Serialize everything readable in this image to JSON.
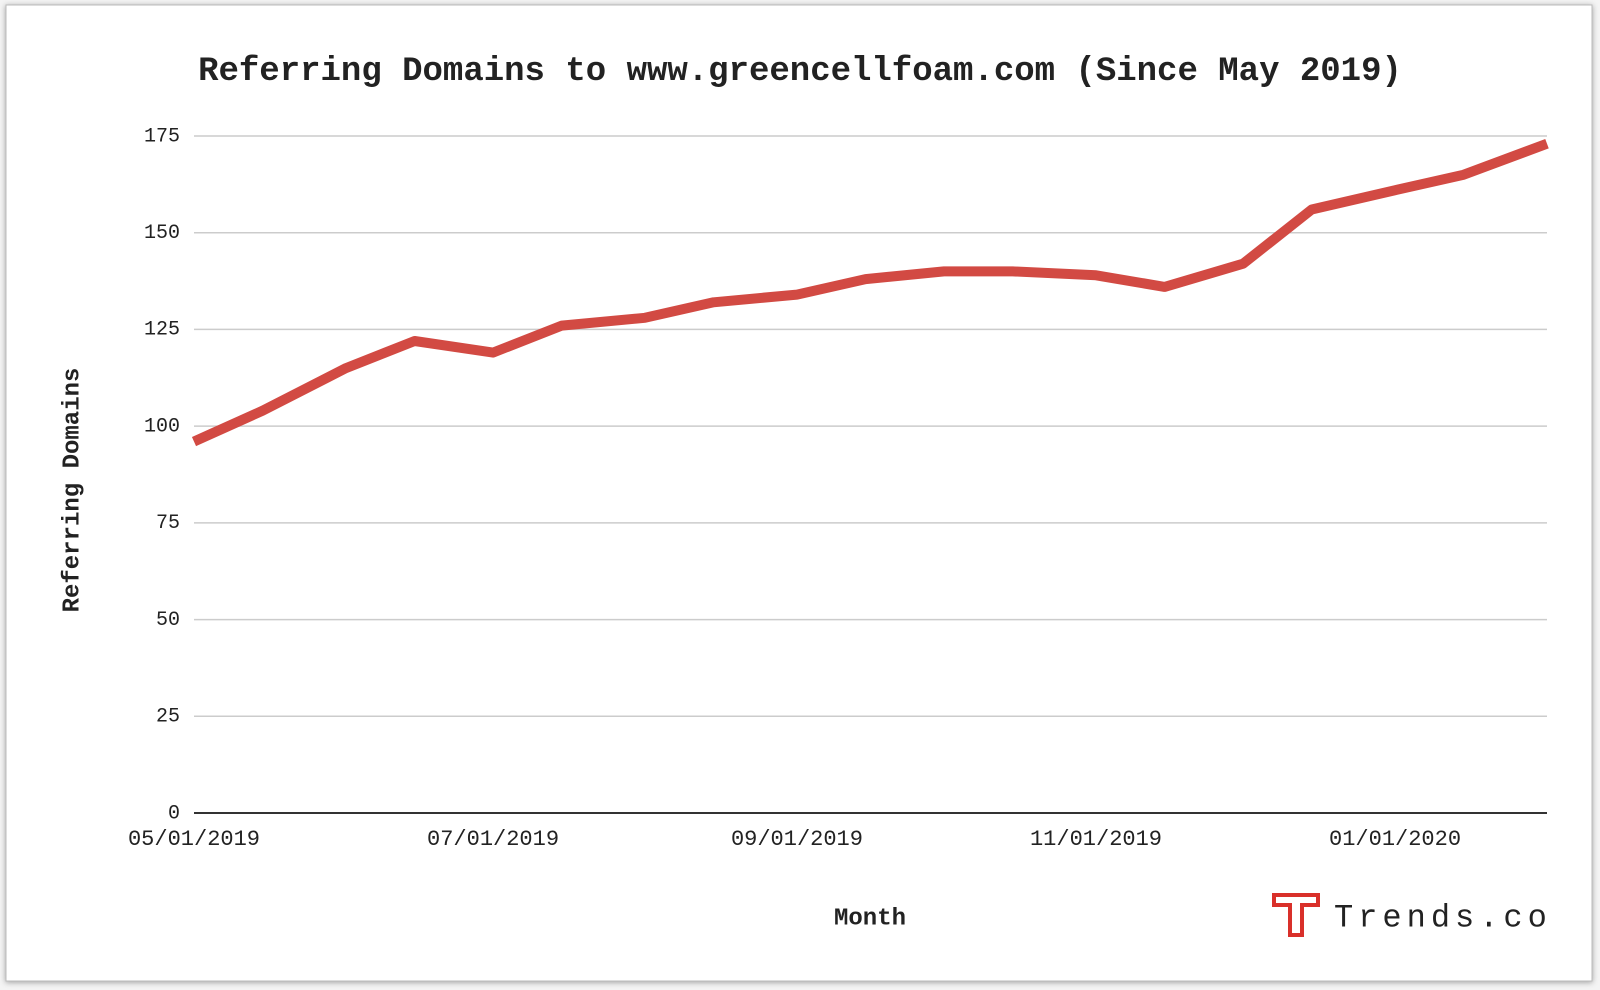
{
  "chart_data": {
    "type": "line",
    "title": "Referring Domains to www.greencellfoam.com (Since May 2019)",
    "x_label": "Month",
    "y_label": "Referring Domains",
    "x": [
      "05/01/2019",
      "05/15/2019",
      "06/01/2019",
      "06/15/2019",
      "07/01/2019",
      "07/15/2019",
      "08/01/2019",
      "08/15/2019",
      "09/01/2019",
      "09/15/2019",
      "10/01/2019",
      "10/15/2019",
      "11/01/2019",
      "11/15/2019",
      "12/01/2019",
      "12/15/2019",
      "01/01/2020",
      "01/15/2020",
      "02/01/2020"
    ],
    "series": [
      {
        "name": "Referring Domains",
        "color": "#d24a43",
        "values": [
          96,
          104,
          115,
          122,
          119,
          126,
          128,
          132,
          134,
          138,
          140,
          140,
          139,
          136,
          142,
          156,
          161,
          165,
          173
        ]
      }
    ],
    "xlim": [
      "05/01/2019",
      "02/01/2020"
    ],
    "xticks": [
      "05/01/2019",
      "07/01/2019",
      "09/01/2019",
      "11/01/2019",
      "01/01/2020"
    ],
    "ylim": [
      0,
      175
    ],
    "yticks": [
      0,
      25,
      50,
      75,
      100,
      125,
      150,
      175
    ],
    "grid": true
  },
  "logo": "Trends.co"
}
